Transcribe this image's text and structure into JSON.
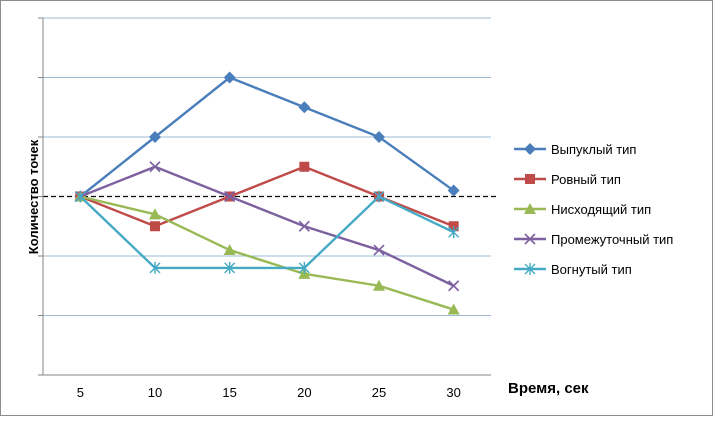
{
  "chart_data": {
    "type": "line",
    "title": "",
    "xlabel": "Время, сек",
    "ylabel": "Количество точек",
    "categories": [
      "5",
      "10",
      "15",
      "20",
      "25",
      "30"
    ],
    "ylim": [
      -6,
      6
    ],
    "y_grid_step": 2,
    "y_tick_labels_shown": false,
    "reference_line": {
      "value": 0,
      "style": "dashed",
      "color": "#000000"
    },
    "grid": true,
    "legend_position": "right",
    "series": [
      {
        "name": "Выпуклый тип",
        "values": [
          0,
          2,
          4,
          3,
          2,
          0.2
        ],
        "color": "#4A7EBB",
        "marker": "diamond"
      },
      {
        "name": "Ровный тип",
        "values": [
          0,
          -1,
          0,
          1,
          0,
          -1
        ],
        "color": "#BE4B48",
        "marker": "square"
      },
      {
        "name": "Нисходящий тип",
        "values": [
          0,
          -0.6,
          -1.8,
          -2.6,
          -3,
          -3.8
        ],
        "color": "#98B954",
        "marker": "triangle"
      },
      {
        "name": "Промежуточный тип",
        "values": [
          0,
          1,
          0,
          -1,
          -1.8,
          -3
        ],
        "color": "#7D60A0",
        "marker": "x"
      },
      {
        "name": "Вогнутый тип",
        "values": [
          0,
          -2.4,
          -2.4,
          -2.4,
          0,
          -1.2
        ],
        "color": "#46AAC5",
        "marker": "asterisk"
      }
    ]
  }
}
